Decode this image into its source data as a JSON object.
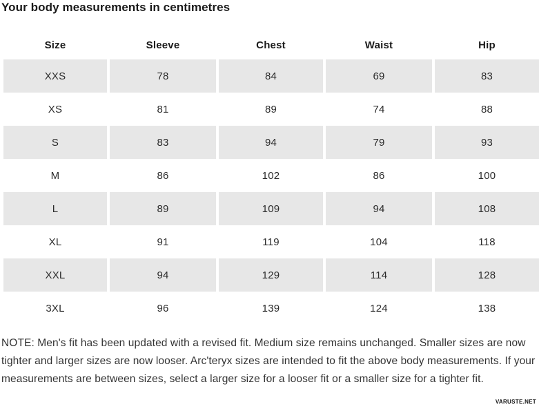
{
  "page": {
    "title": "Your body measurements in centimetres",
    "note": "NOTE: Men's fit has been updated with a revised fit. Medium size remains unchanged. Smaller sizes are now tighter and larger sizes are now looser. Arc'teryx sizes are intended to fit the above body measurements. If your measurements are between sizes, select a larger size for a looser fit or a smaller size for a tighter fit.",
    "watermark": "VARUSTE.NET"
  },
  "table": {
    "headers": [
      "Size",
      "Sleeve",
      "Chest",
      "Waist",
      "Hip"
    ],
    "rows": [
      [
        "XXS",
        "78",
        "84",
        "69",
        "83"
      ],
      [
        "XS",
        "81",
        "89",
        "74",
        "88"
      ],
      [
        "S",
        "83",
        "94",
        "79",
        "93"
      ],
      [
        "M",
        "86",
        "102",
        "86",
        "100"
      ],
      [
        "L",
        "89",
        "109",
        "94",
        "108"
      ],
      [
        "XL",
        "91",
        "119",
        "104",
        "118"
      ],
      [
        "XXL",
        "94",
        "129",
        "114",
        "128"
      ],
      [
        "3XL",
        "96",
        "139",
        "124",
        "138"
      ]
    ]
  },
  "colors": {
    "row_shaded": "#e7e7e7",
    "text": "#2b2b2b",
    "heading": "#1a1a1a"
  },
  "chart_data": {
    "type": "table",
    "title": "Your body measurements in centimetres",
    "columns": [
      "Size",
      "Sleeve",
      "Chest",
      "Waist",
      "Hip"
    ],
    "rows": [
      {
        "size": "XXS",
        "sleeve": 78,
        "chest": 84,
        "waist": 69,
        "hip": 83
      },
      {
        "size": "XS",
        "sleeve": 81,
        "chest": 89,
        "waist": 74,
        "hip": 88
      },
      {
        "size": "S",
        "sleeve": 83,
        "chest": 94,
        "waist": 79,
        "hip": 93
      },
      {
        "size": "M",
        "sleeve": 86,
        "chest": 102,
        "waist": 86,
        "hip": 100
      },
      {
        "size": "L",
        "sleeve": 89,
        "chest": 109,
        "waist": 94,
        "hip": 108
      },
      {
        "size": "XL",
        "sleeve": 91,
        "chest": 119,
        "waist": 104,
        "hip": 118
      },
      {
        "size": "XXL",
        "sleeve": 94,
        "chest": 129,
        "waist": 114,
        "hip": 128
      },
      {
        "size": "3XL",
        "sleeve": 96,
        "chest": 139,
        "waist": 124,
        "hip": 138
      }
    ],
    "layout_hints": {
      "shaded_row_indices": [
        0,
        2,
        4,
        6
      ],
      "note_below_table": true
    }
  }
}
